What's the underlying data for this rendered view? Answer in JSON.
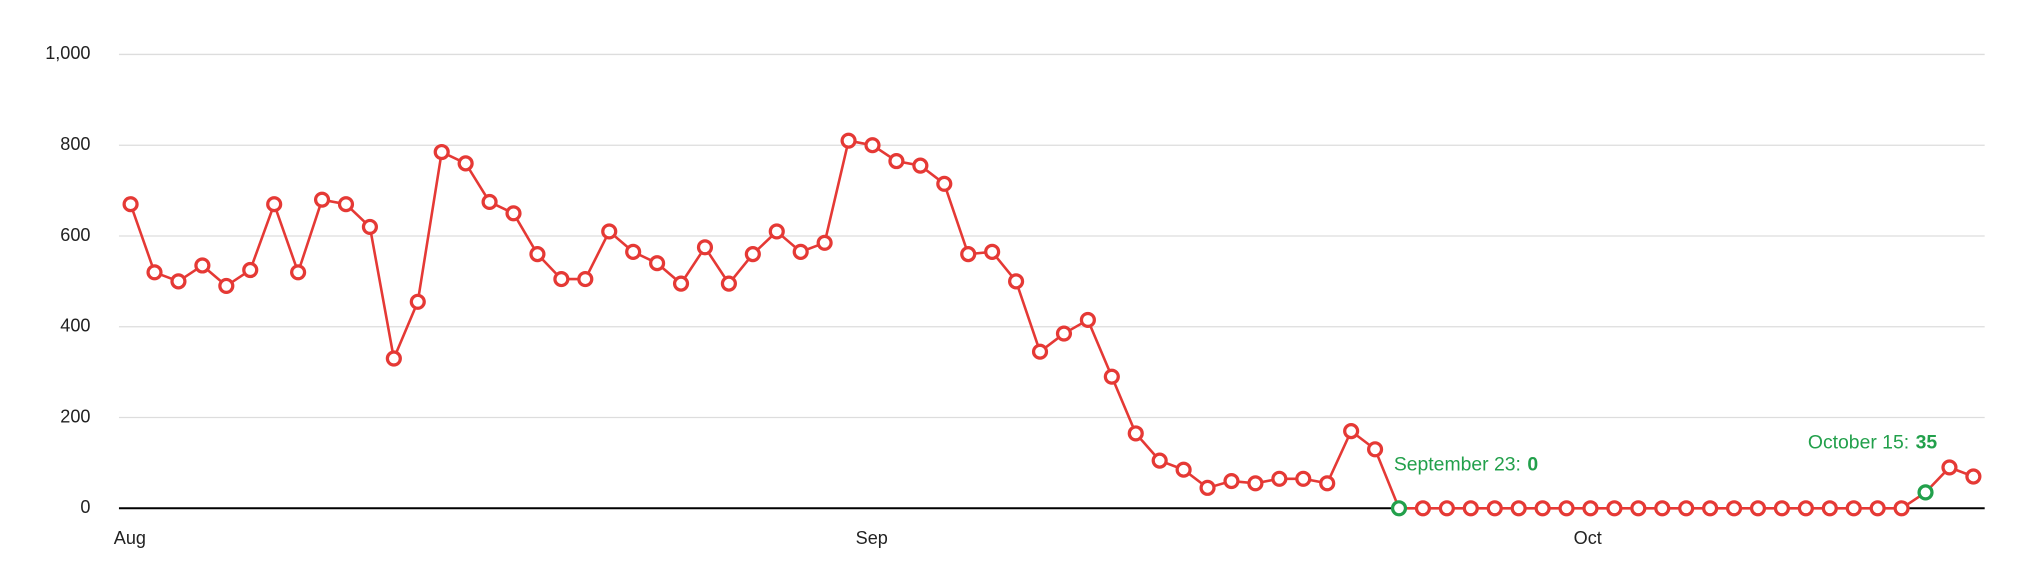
{
  "chart_data": {
    "type": "line",
    "categories": [
      "Aug",
      null,
      null,
      null,
      null,
      null,
      null,
      null,
      null,
      null,
      null,
      null,
      null,
      null,
      null,
      null,
      null,
      null,
      null,
      null,
      null,
      null,
      null,
      null,
      null,
      null,
      null,
      null,
      null,
      null,
      null,
      "Sep",
      null,
      null,
      null,
      null,
      null,
      null,
      null,
      null,
      null,
      null,
      null,
      null,
      null,
      null,
      null,
      null,
      null,
      null,
      null,
      null,
      null,
      null,
      null,
      null,
      null,
      null,
      null,
      null,
      null,
      "Oct",
      null,
      null,
      null,
      null,
      null,
      null,
      null,
      null,
      null,
      null,
      null,
      null,
      null,
      null,
      null,
      null
    ],
    "series": [
      {
        "color": "#e53935",
        "values": [
          670,
          520,
          500,
          535,
          490,
          525,
          670,
          520,
          680,
          670,
          620,
          330,
          455,
          785,
          760,
          675,
          650,
          560,
          505,
          505,
          610,
          565,
          540,
          495,
          575,
          495,
          560,
          610,
          565,
          585,
          810,
          800,
          765,
          755,
          715,
          560,
          565,
          500,
          345,
          385,
          415,
          290,
          165,
          105,
          85,
          45,
          60,
          55,
          65,
          65,
          55,
          170,
          130,
          0,
          0,
          0,
          0,
          0,
          0,
          0,
          0,
          0,
          0,
          0,
          0,
          0,
          0,
          0,
          0,
          0,
          0,
          0,
          0,
          0,
          0,
          35,
          90,
          70
        ]
      }
    ],
    "highlights": [
      {
        "label": "September 23:",
        "index": 53,
        "color": "#22a04b"
      },
      {
        "label": "October 15:",
        "index": 75,
        "color": "#22a04b"
      }
    ],
    "ylim": [
      0,
      1000
    ],
    "yticks": [
      0,
      200,
      400,
      600,
      800,
      {
        "value": 1000,
        "label": "1,000"
      }
    ],
    "grid": true
  }
}
